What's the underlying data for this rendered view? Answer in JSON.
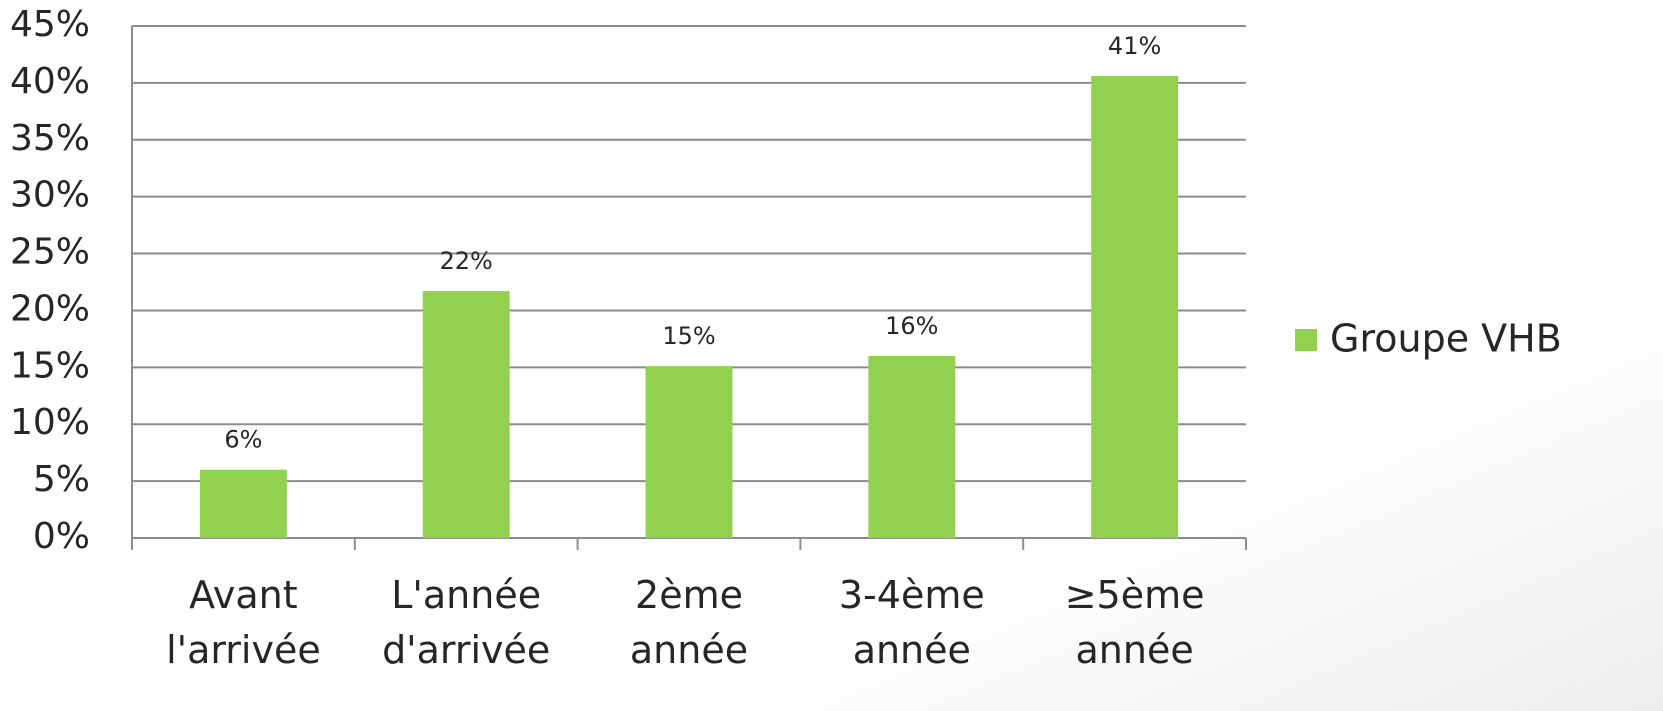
{
  "chart_data": {
    "type": "bar",
    "categories": [
      "Avant l'arrivée",
      "L'année d'arrivée",
      "2ème année",
      "3-4ème année",
      "≥5ème année"
    ],
    "series": [
      {
        "name": "Groupe VHB",
        "color": "#92d050",
        "values": [
          6,
          21.7,
          15.1,
          16,
          40.6
        ],
        "value_labels": [
          "6%",
          "22%",
          "15%",
          "16%",
          "41%"
        ]
      }
    ],
    "ylim": [
      0,
      45
    ],
    "yticks": [
      {
        "value": 0,
        "label": "0%"
      },
      {
        "value": 5,
        "label": "5%"
      },
      {
        "value": 10,
        "label": "10%"
      },
      {
        "value": 15,
        "label": "15%"
      },
      {
        "value": 20,
        "label": "20%"
      },
      {
        "value": 25,
        "label": "25%"
      },
      {
        "value": 30,
        "label": "30%"
      },
      {
        "value": 35,
        "label": "35%"
      },
      {
        "value": 40,
        "label": "40%"
      },
      {
        "value": 45,
        "label": "45%"
      }
    ],
    "grid": true,
    "legend": "right"
  }
}
